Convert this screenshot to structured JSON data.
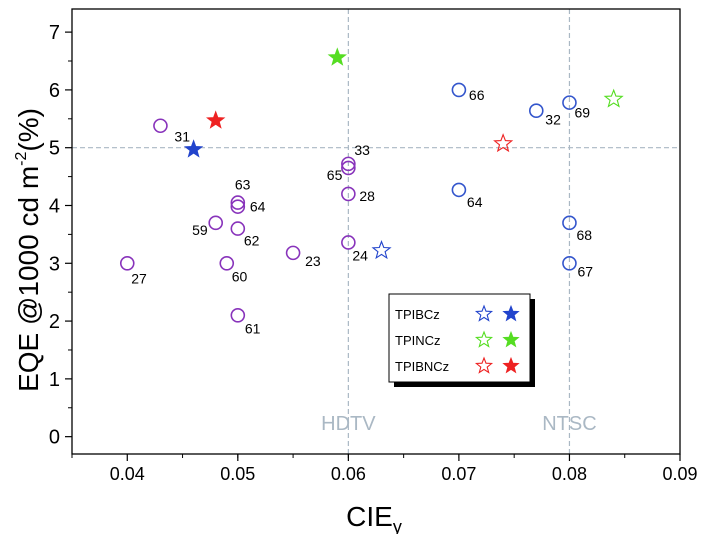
{
  "chart_data": {
    "type": "scatter",
    "xlabel": "CIE",
    "xlabel_sub": "y",
    "ylabel": "EQE @1000 cd m",
    "ylabel_sup": "-2",
    "ylabel_tail": "(%)",
    "xlim": [
      0.035,
      0.09
    ],
    "ylim": [
      -0.3,
      7.4
    ],
    "xticks": [
      "0.04",
      "0.05",
      "0.06",
      "0.07",
      "0.08",
      "0.09"
    ],
    "xtick_values": [
      0.04,
      0.05,
      0.06,
      0.07,
      0.08,
      0.09
    ],
    "yticks": [
      "0",
      "1",
      "2",
      "3",
      "4",
      "5",
      "6",
      "7"
    ],
    "ytick_values": [
      0,
      1,
      2,
      3,
      4,
      5,
      6,
      7
    ],
    "reference_lines": {
      "vertical": [
        {
          "x": 0.06,
          "label": "HDTV"
        },
        {
          "x": 0.08,
          "label": "NTSC"
        }
      ],
      "horizontal": [
        {
          "y": 5.0
        }
      ]
    },
    "legend": {
      "position": "lower-right",
      "entries": [
        {
          "label": "TPIBCz",
          "color": "#2244cc"
        },
        {
          "label": "TPINCz",
          "color": "#55dd22"
        },
        {
          "label": "TPIBNCz",
          "color": "#ee2222"
        }
      ]
    },
    "reference_points": [
      {
        "label": "31",
        "x": 0.043,
        "y": 5.38
      },
      {
        "label": "27",
        "x": 0.04,
        "y": 3.0
      },
      {
        "label": "63",
        "x": 0.05,
        "y": 4.05
      },
      {
        "label": "64",
        "x": 0.05,
        "y": 3.98
      },
      {
        "label": "59",
        "x": 0.048,
        "y": 3.7
      },
      {
        "label": "62",
        "x": 0.05,
        "y": 3.6
      },
      {
        "label": "60",
        "x": 0.049,
        "y": 3.0
      },
      {
        "label": "61",
        "x": 0.05,
        "y": 2.1
      },
      {
        "label": "23",
        "x": 0.055,
        "y": 3.18
      },
      {
        "label": "33",
        "x": 0.06,
        "y": 4.72
      },
      {
        "label": "65",
        "x": 0.06,
        "y": 4.65
      },
      {
        "label": "28",
        "x": 0.06,
        "y": 4.2
      },
      {
        "label": "24",
        "x": 0.06,
        "y": 3.36
      },
      {
        "label": "66",
        "x": 0.07,
        "y": 6.0
      },
      {
        "label": "64",
        "x": 0.07,
        "y": 4.27
      },
      {
        "label": "32",
        "x": 0.077,
        "y": 5.64
      },
      {
        "label": "69",
        "x": 0.08,
        "y": 5.78
      },
      {
        "label": "68",
        "x": 0.08,
        "y": 3.7
      },
      {
        "label": "67",
        "x": 0.08,
        "y": 3.0
      }
    ],
    "series": [
      {
        "name": "TPIBCz",
        "marker": "open-star",
        "color": "#2244cc",
        "x": [
          0.063
        ],
        "y": [
          3.22
        ]
      },
      {
        "name": "TPIBCz",
        "marker": "filled-star",
        "color": "#2244cc",
        "x": [
          0.046
        ],
        "y": [
          4.97
        ]
      },
      {
        "name": "TPINCz",
        "marker": "open-star",
        "color": "#55dd22",
        "x": [
          0.084
        ],
        "y": [
          5.84
        ]
      },
      {
        "name": "TPINCz",
        "marker": "filled-star",
        "color": "#55dd22",
        "x": [
          0.059
        ],
        "y": [
          6.56
        ]
      },
      {
        "name": "TPIBNCz",
        "marker": "open-star",
        "color": "#ee2222",
        "x": [
          0.074
        ],
        "y": [
          5.07
        ]
      },
      {
        "name": "TPIBNCz",
        "marker": "filled-star",
        "color": "#ee2222",
        "x": [
          0.048
        ],
        "y": [
          5.47
        ]
      }
    ],
    "colors": {
      "purple_ring": "#8833bb",
      "blue_ring": "#3355cc",
      "reference_line": "#aab8c4",
      "reference_text": "#aab8c4"
    }
  }
}
